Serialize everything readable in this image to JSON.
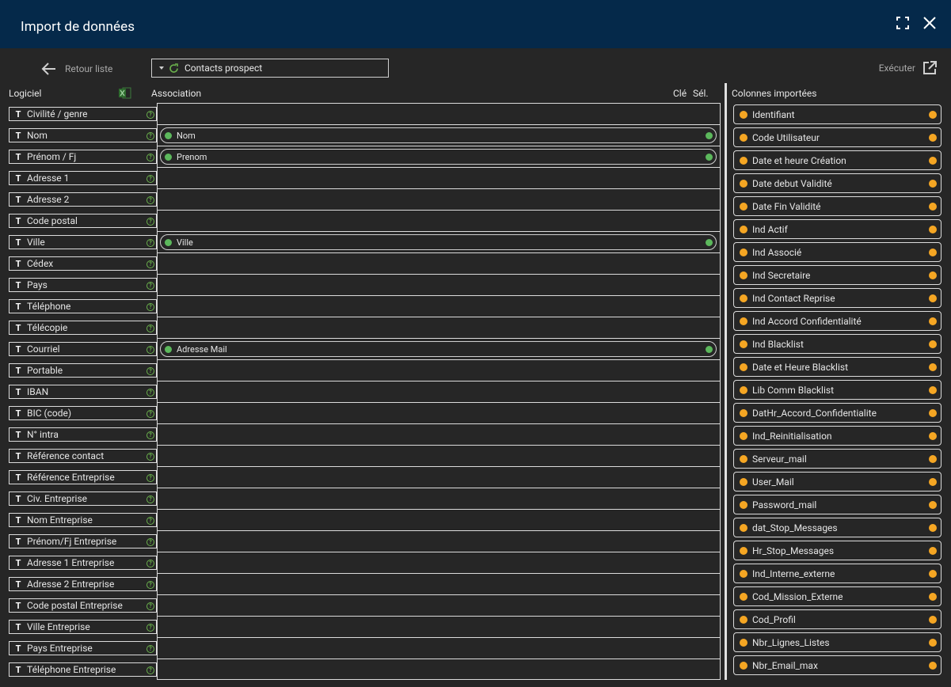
{
  "window": {
    "title": "Import de données"
  },
  "toolbar": {
    "back_label": "Retour liste",
    "source_selected": "Contacts prospect",
    "execute_label": "Exécuter"
  },
  "headers": {
    "logiciel": "Logiciel",
    "association": "Association",
    "cle": "Clé",
    "sel": "Sél.",
    "colonnes": "Colonnes importées"
  },
  "fields": [
    {
      "label": "Civilité / genre",
      "assoc": ""
    },
    {
      "label": "Nom",
      "assoc": "Nom"
    },
    {
      "label": "Prénom / Fj",
      "assoc": "Prenom"
    },
    {
      "label": "Adresse 1",
      "assoc": ""
    },
    {
      "label": "Adresse 2",
      "assoc": ""
    },
    {
      "label": "Code postal",
      "assoc": ""
    },
    {
      "label": "Ville",
      "assoc": "Ville"
    },
    {
      "label": "Cédex",
      "assoc": ""
    },
    {
      "label": "Pays",
      "assoc": ""
    },
    {
      "label": "Téléphone",
      "assoc": ""
    },
    {
      "label": "Télécopie",
      "assoc": ""
    },
    {
      "label": "Courriel",
      "assoc": "Adresse Mail"
    },
    {
      "label": "Portable",
      "assoc": ""
    },
    {
      "label": "IBAN",
      "assoc": ""
    },
    {
      "label": "BIC (code)",
      "assoc": ""
    },
    {
      "label": "N° intra",
      "assoc": ""
    },
    {
      "label": "Référence contact",
      "assoc": ""
    },
    {
      "label": "Référence Entreprise",
      "assoc": ""
    },
    {
      "label": "Civ. Entreprise",
      "assoc": ""
    },
    {
      "label": "Nom Entreprise",
      "assoc": ""
    },
    {
      "label": "Prénom/Fj Entreprise",
      "assoc": ""
    },
    {
      "label": "Adresse 1 Entreprise",
      "assoc": ""
    },
    {
      "label": "Adresse 2 Entreprise",
      "assoc": ""
    },
    {
      "label": "Code postal Entreprise",
      "assoc": ""
    },
    {
      "label": "Ville Entreprise",
      "assoc": ""
    },
    {
      "label": "Pays Entreprise",
      "assoc": ""
    },
    {
      "label": "Téléphone Entreprise",
      "assoc": ""
    }
  ],
  "imported_columns": [
    "Identifiant",
    "Code Utilisateur",
    "Date et heure Création",
    "Date debut Validité",
    "Date Fin Validité",
    "Ind Actif",
    "Ind Associé",
    "Ind Secretaire",
    "Ind Contact Reprise",
    "Ind Accord Confidentialité",
    "Ind Blacklist",
    "Date et Heure Blacklist",
    "Lib Comm Blacklist",
    "DatHr_Accord_Confidentialite",
    "Ind_Reinitialisation",
    "Serveur_mail",
    "User_Mail",
    "Password_mail",
    "dat_Stop_Messages",
    "Hr_Stop_Messages",
    "Ind_Interne_externe",
    "Cod_Mission_Externe",
    "Cod_Profil",
    "Nbr_Lignes_Listes",
    "Nbr_Email_max"
  ],
  "colors": {
    "titlebar": "#05294a",
    "background": "#262626",
    "associated_dot": "#5cb85c",
    "imported_dot": "#f5a623"
  }
}
